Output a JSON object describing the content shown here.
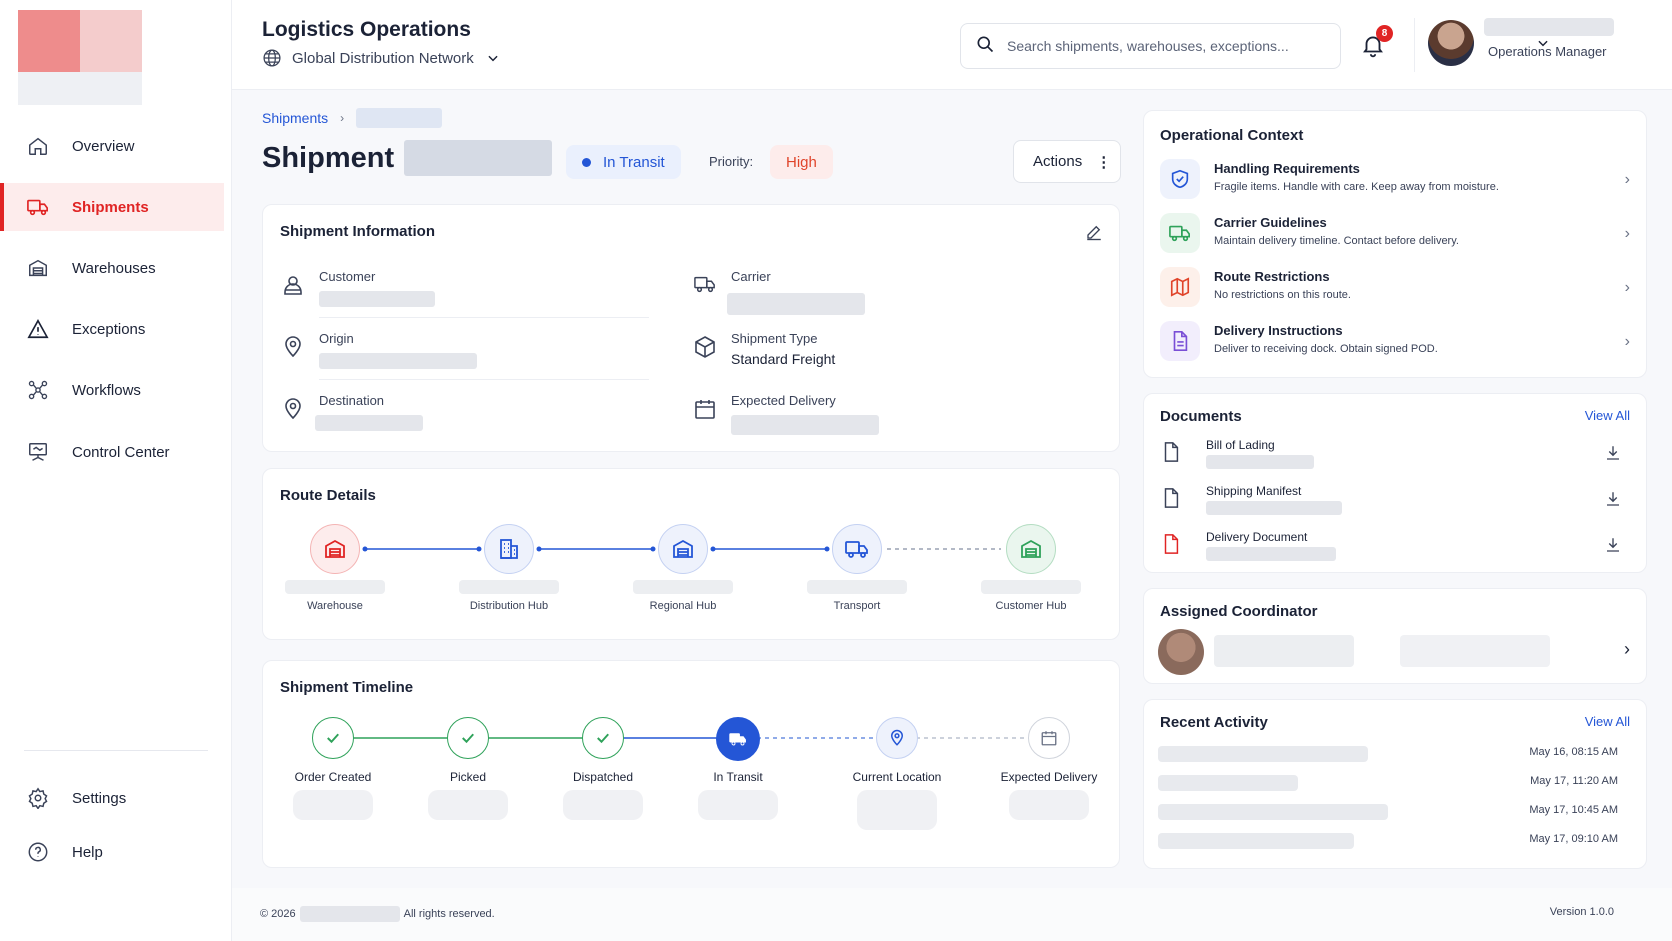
{
  "sidebar": {
    "items": [
      {
        "label": "Overview",
        "icon": "home-icon"
      },
      {
        "label": "Shipments",
        "icon": "truck-icon",
        "active": true
      },
      {
        "label": "Warehouses",
        "icon": "warehouse-icon"
      },
      {
        "label": "Exceptions",
        "icon": "warning-icon"
      },
      {
        "label": "Workflows",
        "icon": "workflow-icon"
      },
      {
        "label": "Control Center",
        "icon": "monitor-icon"
      }
    ],
    "bottom": [
      {
        "label": "Settings",
        "icon": "gear-icon"
      },
      {
        "label": "Help",
        "icon": "help-icon"
      }
    ]
  },
  "header": {
    "title": "Logistics Operations",
    "network": "Global Distribution Network",
    "search_placeholder": "Search shipments, warehouses, exceptions...",
    "notification_count": "8",
    "user_role": "Operations Manager"
  },
  "breadcrumb": {
    "root": "Shipments"
  },
  "shipment": {
    "title": "Shipment",
    "status": "In Transit",
    "priority_label": "Priority:",
    "priority": "High",
    "actions_label": "Actions"
  },
  "info": {
    "title": "Shipment Information",
    "fields": {
      "customer": "Customer",
      "carrier": "Carrier",
      "origin": "Origin",
      "shipment_type": "Shipment Type",
      "shipment_type_value": "Standard Freight",
      "destination": "Destination",
      "expected_delivery": "Expected Delivery"
    }
  },
  "route": {
    "title": "Route Details",
    "stops": [
      "Warehouse",
      "Distribution Hub",
      "Regional Hub",
      "Transport",
      "Customer Hub"
    ]
  },
  "timeline": {
    "title": "Shipment Timeline",
    "steps": [
      "Order Created",
      "Picked",
      "Dispatched",
      "In Transit",
      "Current Location",
      "Expected Delivery"
    ]
  },
  "context": {
    "title": "Operational Context",
    "items": [
      {
        "title": "Handling Requirements",
        "desc": "Fragile items. Handle with care. Keep away from moisture."
      },
      {
        "title": "Carrier Guidelines",
        "desc": "Maintain delivery timeline. Contact before delivery."
      },
      {
        "title": "Route Restrictions",
        "desc": "No restrictions on this route."
      },
      {
        "title": "Delivery Instructions",
        "desc": "Deliver to receiving dock. Obtain signed POD."
      }
    ]
  },
  "documents": {
    "title": "Documents",
    "view_all": "View All",
    "items": [
      "Bill of Lading",
      "Shipping Manifest",
      "Delivery Document"
    ]
  },
  "coordinator": {
    "title": "Assigned Coordinator"
  },
  "activity": {
    "title": "Recent Activity",
    "view_all": "View All",
    "times": [
      "May 16, 08:15 AM",
      "May 17, 11:20 AM",
      "May 17, 10:45 AM",
      "May 17, 09:10 AM"
    ]
  },
  "footer": {
    "copyright_prefix": "© 2026",
    "copyright_suffix": "All rights reserved.",
    "version": "Version 1.0.0"
  },
  "colors": {
    "accent": "#e02424",
    "primary": "#2456d6",
    "success": "#2fa25a"
  }
}
